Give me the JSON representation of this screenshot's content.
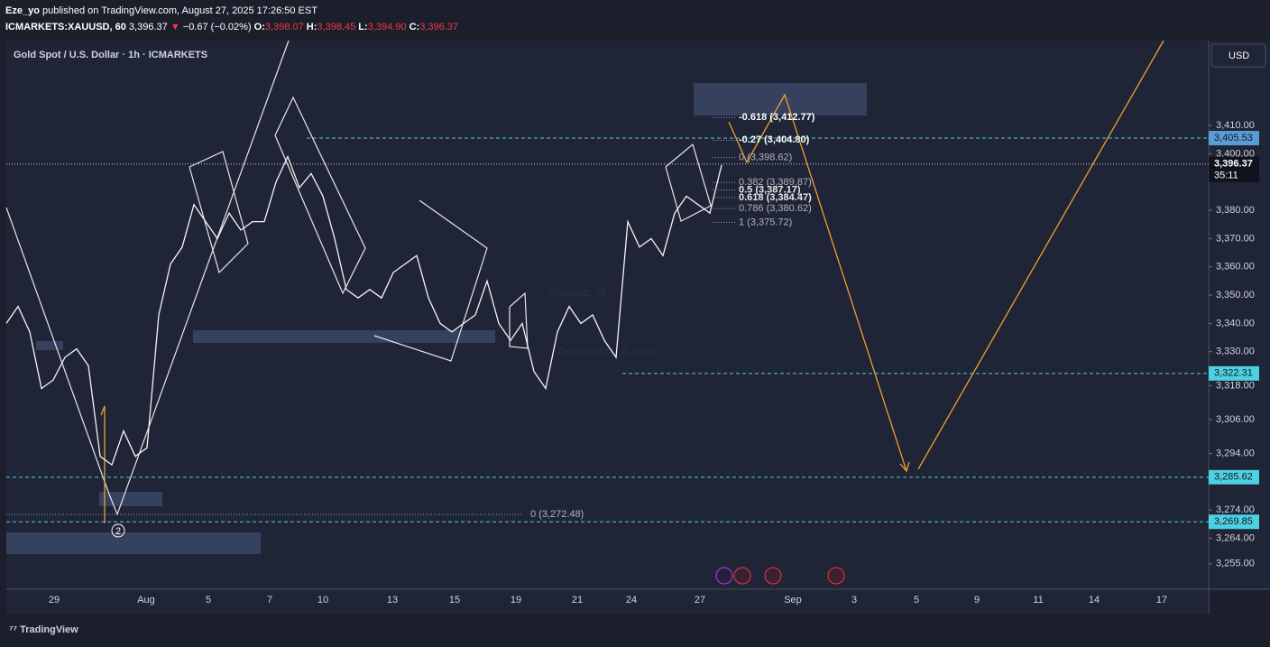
{
  "header": {
    "author": "Eze_yo",
    "published": "published on TradingView.com, August 27, 2025 17:26:50 EST",
    "symbol": "ICMARKETS:XAUUSD, 60",
    "last": "3,396.37",
    "arrow": "▼",
    "change": "−0.67 (−0.02%)",
    "o_key": "O:",
    "o": "3,398.07",
    "h_key": "H:",
    "h": "3,398.45",
    "l_key": "L:",
    "l": "3,394.90",
    "c_key": "C:",
    "c": "3,396.37"
  },
  "chart": {
    "title": "Gold Spot / U.S. Dollar · 1h · ICMARKETS",
    "watermark_symbol": "XAUUSD, 1h",
    "watermark_name": "Gold Spot / U.S. Dollar",
    "currency": "USD",
    "countdown": "35:11",
    "wave_label": "2",
    "ylim": [
      3246,
      3440
    ],
    "yticks": [
      {
        "value": 3410,
        "label": "3,410.00"
      },
      {
        "value": 3400,
        "label": "3,400.00"
      },
      {
        "value": 3380,
        "label": "3,380.00"
      },
      {
        "value": 3370,
        "label": "3,370.00"
      },
      {
        "value": 3360,
        "label": "3,360.00"
      },
      {
        "value": 3350,
        "label": "3,350.00"
      },
      {
        "value": 3340,
        "label": "3,340.00"
      },
      {
        "value": 3330,
        "label": "3,330.00"
      },
      {
        "value": 3318,
        "label": "3,318.00"
      },
      {
        "value": 3306,
        "label": "3,306.00"
      },
      {
        "value": 3294,
        "label": "3,294.00"
      },
      {
        "value": 3274,
        "label": "3,274.00"
      },
      {
        "value": 3264,
        "label": "3,264.00"
      },
      {
        "value": 3255,
        "label": "3,255.00"
      }
    ],
    "x_labels": [
      "29",
      "Aug",
      "5",
      "7",
      "10",
      "13",
      "15",
      "19",
      "21",
      "24",
      "27",
      "Sep",
      "3",
      "5",
      "9",
      "11",
      "14",
      "17"
    ],
    "price_path": [
      3340,
      3346,
      3337,
      3317,
      3320,
      3328,
      3331,
      3325,
      3293,
      3290,
      3302,
      3293,
      3296,
      3343,
      3361,
      3367,
      3382,
      3376,
      3370,
      3379,
      3373,
      3376,
      3376,
      3390,
      3399,
      3388,
      3393,
      3385,
      3370,
      3352,
      3349,
      3352,
      3349,
      3358,
      3361,
      3364,
      3349,
      3340,
      3337,
      3340,
      3343,
      3355,
      3340,
      3334,
      3340,
      3323,
      3317,
      3337,
      3346,
      3340,
      3343,
      3334,
      3328,
      3376,
      3367,
      3370,
      3364,
      3379,
      3385,
      3382,
      3379,
      3396
    ],
    "current_price": {
      "value": 3396.37,
      "label": "3,396.37"
    },
    "price_lines": [
      {
        "value": 3405.53,
        "label": "3,405.53"
      },
      {
        "value": 3322.31,
        "label": "3,322.31"
      },
      {
        "value": 3285.62,
        "label": "3,285.62"
      },
      {
        "value": 3269.85,
        "label": "3,269.85"
      }
    ],
    "fib_upper": [
      {
        "value": 3412.77,
        "label": "-0.618 (3,412.77)"
      },
      {
        "value": 3404.8,
        "label": "-0.27 (3,404.80)"
      },
      {
        "value": 3398.62,
        "label": "0 (3,398.62)"
      },
      {
        "value": 3389.87,
        "label": "0.382 (3,389.87)"
      },
      {
        "value": 3387.17,
        "label": "0.5 (3,387.17)"
      },
      {
        "value": 3384.47,
        "label": "0.618 (3,384.47)"
      },
      {
        "value": 3380.62,
        "label": "0.786 (3,380.62)"
      },
      {
        "value": 3375.72,
        "label": "1 (3,375.72)"
      }
    ],
    "fib_lower": {
      "value": 3272.48,
      "label": "0 (3,272.48)"
    }
  },
  "footer": {
    "brand": "TradingView"
  }
}
